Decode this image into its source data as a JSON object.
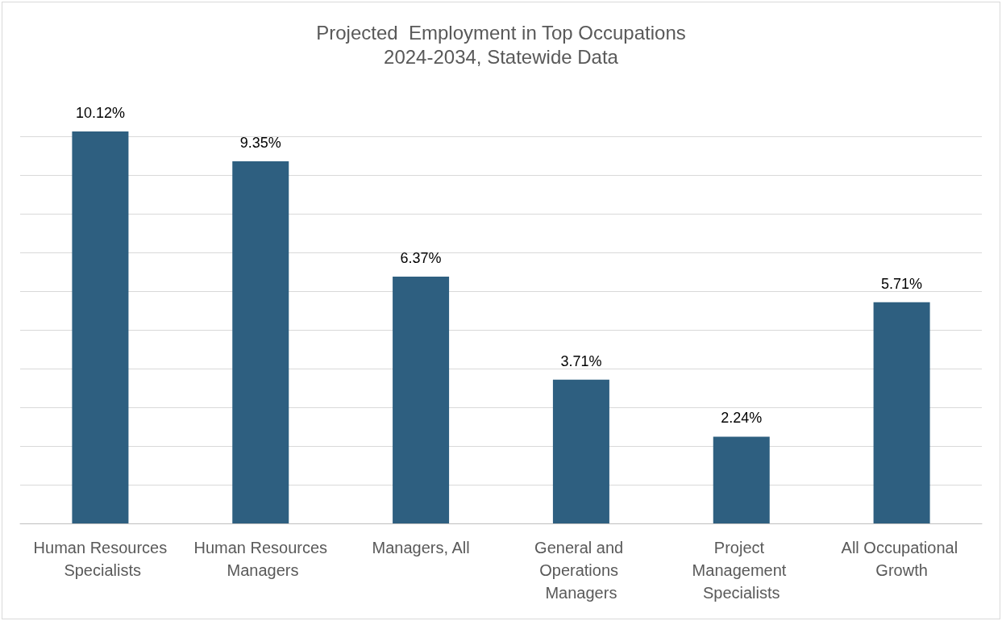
{
  "chart_data": {
    "type": "bar",
    "title": "Projected  Employment in Top Occupations",
    "subtitle": "2024-2034, Statewide Data",
    "categories": [
      "Human Resources Specialists",
      "Human Resources Managers",
      "Managers, All",
      "General and Operations Managers",
      "Project Management Specialists",
      "All Occupational Growth"
    ],
    "values": [
      10.12,
      9.35,
      6.37,
      3.71,
      2.24,
      5.71
    ],
    "value_labels": [
      "10.12%",
      "9.35%",
      "6.37%",
      "3.71%",
      "2.24%",
      "5.71%"
    ],
    "color": "#2e5f80",
    "ylim": [
      0,
      10.12
    ],
    "yticks": [
      {
        "value": 0,
        "label": null
      },
      {
        "value": 1,
        "label": null
      },
      {
        "value": 2,
        "label": null
      },
      {
        "value": 3,
        "label": null
      },
      {
        "value": 4,
        "label": null
      },
      {
        "value": 5,
        "label": null
      },
      {
        "value": 6,
        "label": null
      },
      {
        "value": 7,
        "label": null
      },
      {
        "value": 8,
        "label": null
      },
      {
        "value": 9,
        "label": null
      },
      {
        "value": 10,
        "label": null
      }
    ],
    "grid": "y"
  }
}
